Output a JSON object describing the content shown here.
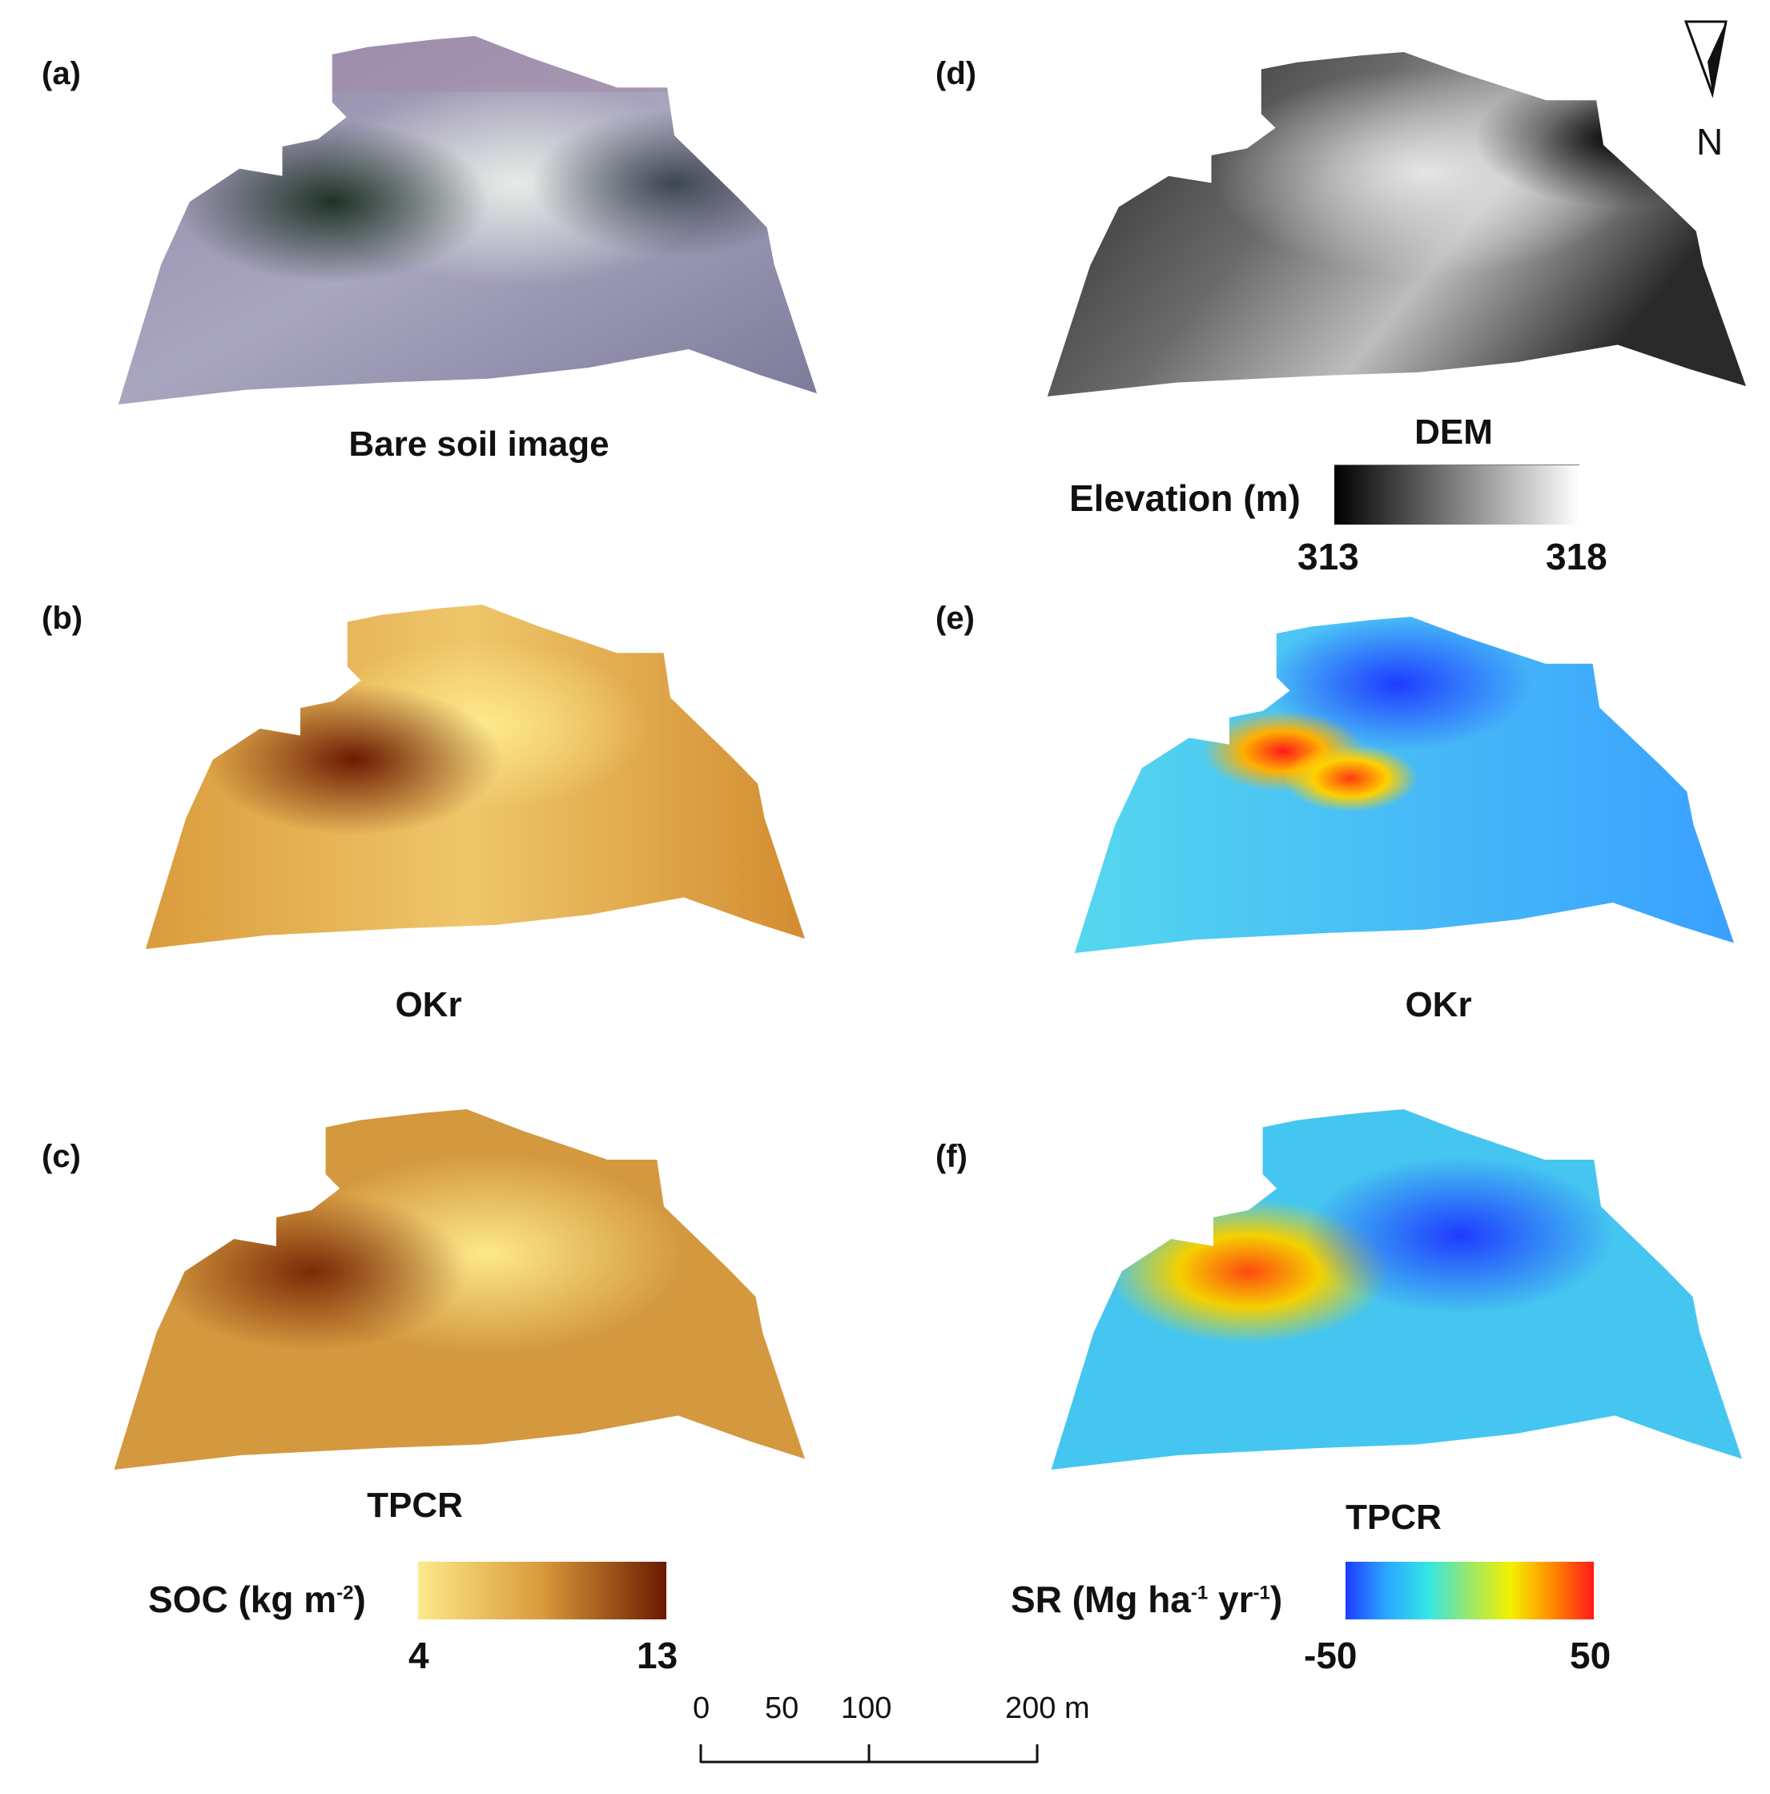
{
  "panels": {
    "a": {
      "letter": "(a)",
      "caption": "Bare soil image"
    },
    "b": {
      "letter": "(b)",
      "caption": "OKr"
    },
    "c": {
      "letter": "(c)",
      "caption": "TPCR"
    },
    "d": {
      "letter": "(d)",
      "caption": "DEM"
    },
    "e": {
      "letter": "(e)",
      "caption": "OKr"
    },
    "f": {
      "letter": "(f)",
      "caption": "TPCR"
    }
  },
  "legends": {
    "elevation": {
      "label": "Elevation (m)",
      "min": "313",
      "max": "318",
      "colors": [
        "#000000",
        "#ffffff"
      ]
    },
    "soc": {
      "label_main": "SOC (kg m",
      "label_sup": "-2",
      "label_end": ")",
      "min": "4",
      "max": "13",
      "colors": [
        "#fde98a",
        "#d99a3a",
        "#6b1a00"
      ]
    },
    "sr": {
      "label_main": "SR (Mg ha",
      "label_sup1": "-1",
      "label_mid": " yr",
      "label_sup2": "-1",
      "label_end": ")",
      "min": "-50",
      "max": "50",
      "colors": [
        "#1e3cff",
        "#2aa8ff",
        "#33e6e6",
        "#9be86a",
        "#f4f000",
        "#ff8a00",
        "#ff1a1a"
      ]
    }
  },
  "north_arrow": {
    "label": "N"
  },
  "scale_bar": {
    "labels": [
      "0",
      "50",
      "100",
      "200 m"
    ]
  }
}
